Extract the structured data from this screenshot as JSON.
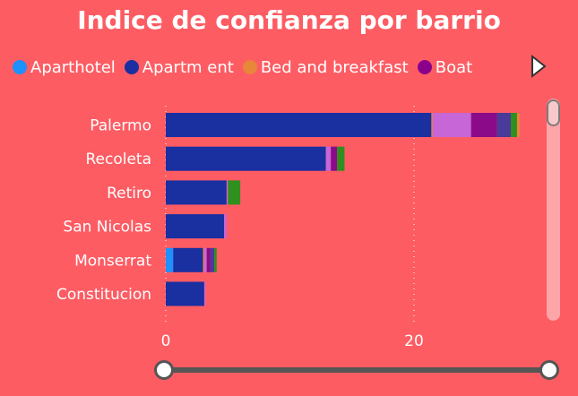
{
  "title": "Indice de confianza por barrio",
  "legend": [
    {
      "label": "Aparthotel",
      "color": "#1e90ff"
    },
    {
      "label": "Apartm ent",
      "color": "#1a2fa0"
    },
    {
      "label": "Bed and breakfast",
      "color": "#e8863a"
    },
    {
      "label": "Boat",
      "color": "#8b008b"
    }
  ],
  "legend_next_icon": "play-arrow-icon",
  "chart_data": {
    "type": "bar",
    "orientation": "horizontal",
    "stacked": true,
    "title": "Indice de confianza por barrio",
    "categories": [
      "Palermo",
      "Recoleta",
      "Retiro",
      "San Nicolas",
      "Monserrat",
      "Constitucion"
    ],
    "x_ticks": [
      0,
      20
    ],
    "xlim": [
      0,
      30
    ],
    "grid": "vertical dotted",
    "series": [
      {
        "name": "Aparthotel",
        "color": "#1e90ff",
        "values": [
          0,
          0,
          0,
          0,
          0.6,
          0
        ]
      },
      {
        "name": "Apartm ent",
        "color": "#1a2fa0",
        "values": [
          21.4,
          12.9,
          4.9,
          4.7,
          2.4,
          3.1
        ]
      },
      {
        "name": "Bed and breakfast",
        "color": "#e8863a",
        "values": [
          0.1,
          0,
          0,
          0,
          0.1,
          0
        ]
      },
      {
        "name": "Boat",
        "color": "#8b008b",
        "values": [
          0,
          0,
          0,
          0,
          0,
          0
        ]
      },
      {
        "color": "#c766d6",
        "values": [
          3.1,
          0.4,
          0.1,
          0.2,
          0.2,
          0.1
        ]
      },
      {
        "color": "#8a0a8a",
        "values": [
          2.1,
          0.5,
          0,
          0,
          0.3,
          0
        ]
      },
      {
        "color": "#4a3a9a",
        "values": [
          1.1,
          0,
          0,
          0,
          0.3,
          0
        ]
      },
      {
        "color": "#2f8f1f",
        "values": [
          0.5,
          0.6,
          1.0,
          0,
          0.2,
          0
        ]
      },
      {
        "color": "#e8863a",
        "values": [
          0.2,
          0,
          0,
          0,
          0,
          0
        ]
      }
    ]
  }
}
